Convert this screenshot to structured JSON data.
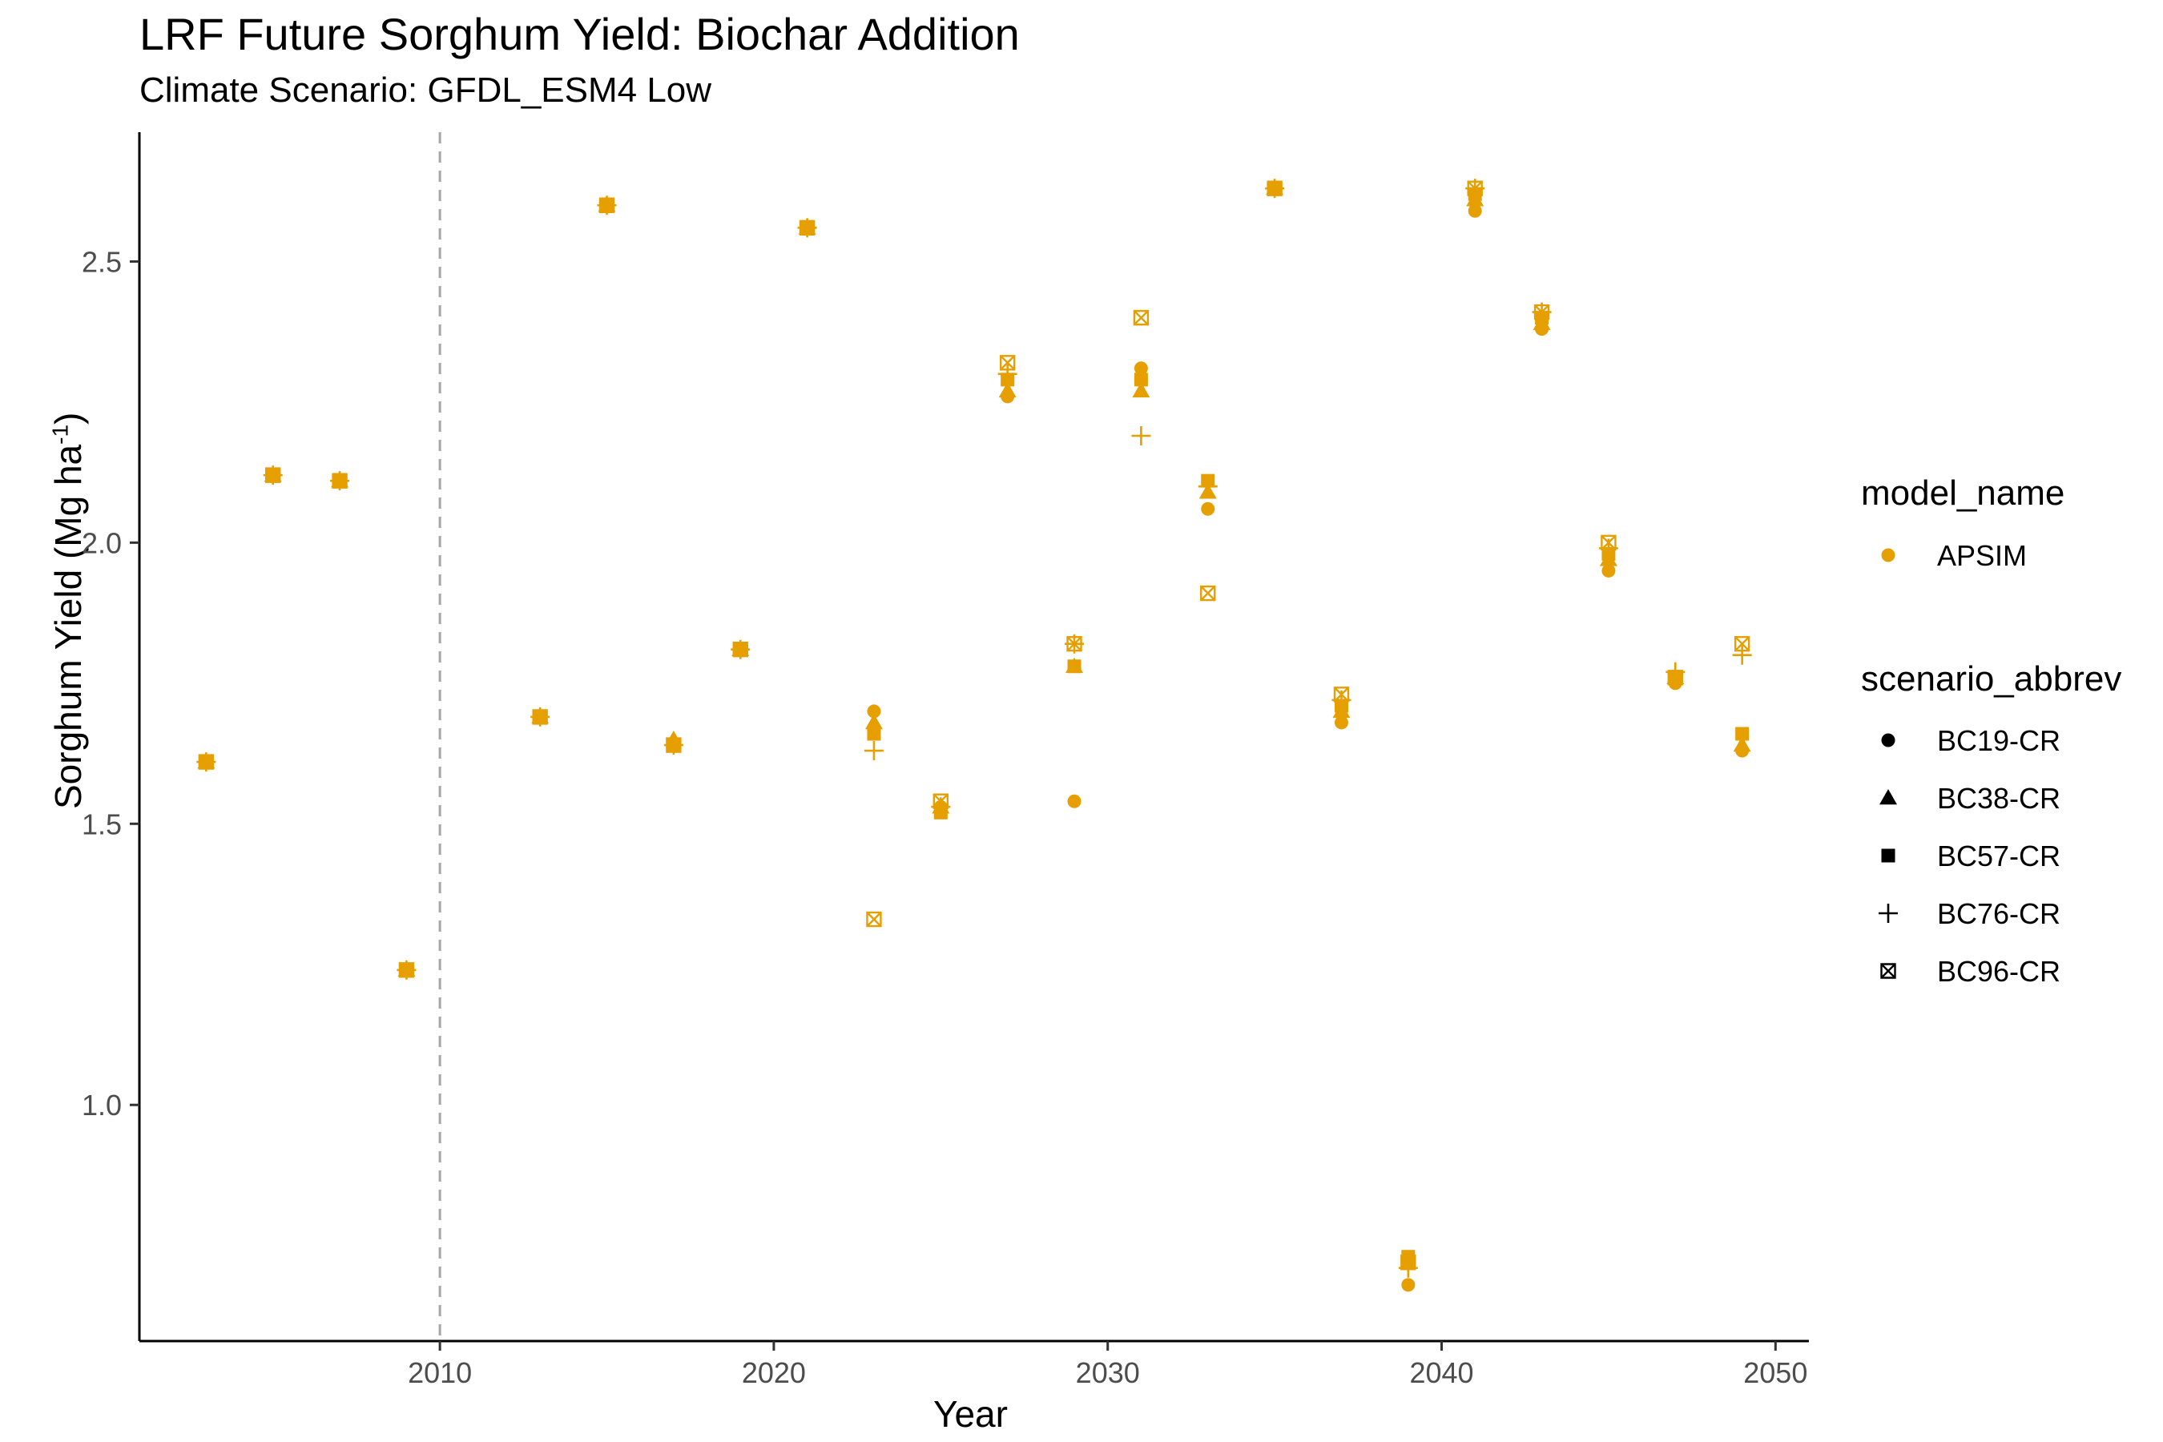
{
  "chart_data": {
    "type": "scatter",
    "title": "LRF Future Sorghum Yield: Biochar Addition",
    "subtitle": "Climate Scenario: GFDL_ESM4 Low",
    "xlabel": "Year",
    "ylabel": "Sorghum Yield (Mg ha",
    "ylabel_sup": "-1",
    "ylabel_close": ")",
    "xlim": [
      2001,
      2051
    ],
    "ylim": [
      0.58,
      2.73
    ],
    "xticks": [
      2010,
      2020,
      2030,
      2040,
      2050
    ],
    "yticks": [
      1.0,
      1.5,
      2.0,
      2.5
    ],
    "ytick_labels": [
      "1.0",
      "1.5",
      "2.0",
      "2.5"
    ],
    "reference_line_x": 2010,
    "point_color": "#E69F00",
    "legend": {
      "model_title": "model_name",
      "model_items": [
        {
          "label": "APSIM",
          "shape": "circle"
        }
      ],
      "scenario_title": "scenario_abbrev",
      "scenario_items": [
        {
          "label": "BC19-CR",
          "shape": "circle"
        },
        {
          "label": "BC38-CR",
          "shape": "triangle"
        },
        {
          "label": "BC57-CR",
          "shape": "square"
        },
        {
          "label": "BC76-CR",
          "shape": "plus"
        },
        {
          "label": "BC96-CR",
          "shape": "boxx"
        }
      ]
    },
    "x": [
      2003,
      2005,
      2007,
      2009,
      2013,
      2015,
      2017,
      2019,
      2021,
      2023,
      2025,
      2027,
      2029,
      2031,
      2033,
      2035,
      2037,
      2039,
      2041,
      2043,
      2045,
      2047,
      2049
    ],
    "series": [
      {
        "name": "BC19-CR",
        "shape": "circle",
        "values": [
          1.61,
          2.12,
          2.11,
          1.24,
          1.69,
          2.6,
          1.64,
          1.81,
          2.56,
          1.7,
          1.53,
          2.26,
          1.54,
          2.31,
          2.06,
          2.63,
          1.68,
          0.68,
          2.59,
          2.38,
          1.95,
          1.75,
          1.63
        ]
      },
      {
        "name": "BC38-CR",
        "shape": "triangle",
        "values": [
          1.61,
          2.12,
          2.11,
          1.24,
          1.69,
          2.6,
          1.65,
          1.81,
          2.56,
          1.68,
          1.53,
          2.27,
          1.78,
          2.27,
          2.09,
          2.63,
          1.7,
          0.72,
          2.61,
          2.39,
          1.97,
          1.76,
          1.64
        ]
      },
      {
        "name": "BC57-CR",
        "shape": "square",
        "values": [
          1.61,
          2.12,
          2.11,
          1.24,
          1.69,
          2.6,
          1.64,
          1.81,
          2.56,
          1.66,
          1.52,
          2.29,
          1.78,
          2.29,
          2.11,
          2.63,
          1.71,
          0.73,
          2.62,
          2.4,
          1.98,
          1.76,
          1.66
        ]
      },
      {
        "name": "BC76-CR",
        "shape": "plus",
        "values": [
          1.61,
          2.12,
          2.11,
          1.24,
          1.69,
          2.6,
          1.64,
          1.81,
          2.56,
          1.63,
          1.53,
          2.3,
          1.82,
          2.19,
          2.1,
          2.63,
          1.72,
          0.71,
          2.63,
          2.41,
          1.99,
          1.77,
          1.8
        ]
      },
      {
        "name": "BC96-CR",
        "shape": "boxx",
        "values": [
          1.61,
          2.12,
          2.11,
          1.24,
          1.69,
          2.6,
          1.64,
          1.81,
          2.56,
          1.33,
          1.54,
          2.32,
          1.82,
          2.4,
          1.91,
          2.63,
          1.73,
          0.72,
          2.63,
          2.41,
          2.0,
          1.76,
          1.82
        ]
      }
    ]
  }
}
